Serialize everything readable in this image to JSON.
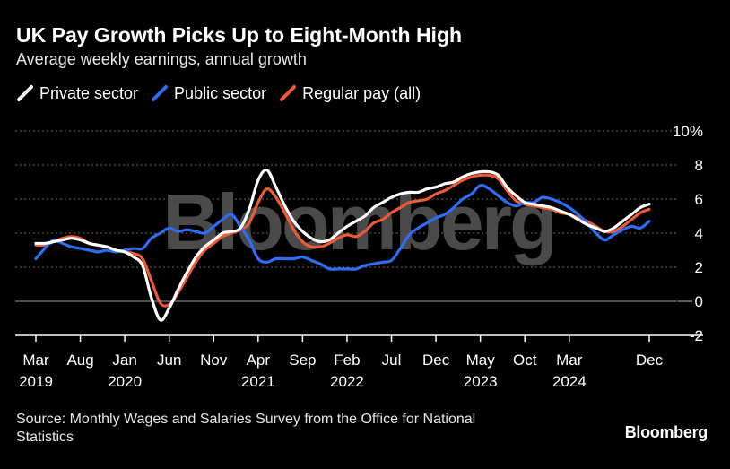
{
  "header": {
    "title": "UK Pay Growth Picks Up to Eight-Month High",
    "subtitle": "Average weekly earnings, annual growth"
  },
  "footer": {
    "source": "Source: Monthly Wages and Salaries Survey from the Office for National Statistics",
    "brand": "Bloomberg"
  },
  "watermark": "Bloomberg",
  "colors": {
    "background": "#000000",
    "private": "#ffffff",
    "public": "#2f6df6",
    "regular": "#ee5a36",
    "grid": "#666666",
    "watermark": "#4a4a4a"
  },
  "chart_data": {
    "type": "line",
    "x_start": "2019-03",
    "x_end": "2024-12",
    "ylim": [
      -2,
      10
    ],
    "yticks": [
      10,
      8,
      6,
      4,
      2,
      0,
      -2
    ],
    "ytick_labels": [
      "10%",
      "8",
      "6",
      "4",
      "2",
      "0",
      "-2"
    ],
    "grid": true,
    "legend_position": "top-left",
    "xticks": [
      {
        "date": "2019-03",
        "month": "Mar",
        "year": "2019"
      },
      {
        "date": "2019-08",
        "month": "Aug",
        "year": ""
      },
      {
        "date": "2020-01",
        "month": "Jan",
        "year": "2020"
      },
      {
        "date": "2020-06",
        "month": "Jun",
        "year": ""
      },
      {
        "date": "2020-11",
        "month": "Nov",
        "year": ""
      },
      {
        "date": "2021-04",
        "month": "Apr",
        "year": "2021"
      },
      {
        "date": "2021-09",
        "month": "Sep",
        "year": ""
      },
      {
        "date": "2022-02",
        "month": "Feb",
        "year": "2022"
      },
      {
        "date": "2022-07",
        "month": "Jul",
        "year": ""
      },
      {
        "date": "2022-12",
        "month": "Dec",
        "year": ""
      },
      {
        "date": "2023-05",
        "month": "May",
        "year": "2023"
      },
      {
        "date": "2023-10",
        "month": "Oct",
        "year": ""
      },
      {
        "date": "2024-03",
        "month": "Mar",
        "year": "2024"
      },
      {
        "date": "2024-12",
        "month": "Dec",
        "year": ""
      }
    ],
    "series": [
      {
        "key": "regular",
        "name": "Regular pay (all)",
        "color": "#ee5a36",
        "points": [
          [
            "2019-03",
            3.3
          ],
          [
            "2019-04",
            3.3
          ],
          [
            "2019-05",
            3.5
          ],
          [
            "2019-06",
            3.7
          ],
          [
            "2019-07",
            3.8
          ],
          [
            "2019-08",
            3.7
          ],
          [
            "2019-09",
            3.4
          ],
          [
            "2019-10",
            3.3
          ],
          [
            "2019-11",
            3.2
          ],
          [
            "2019-12",
            3.0
          ],
          [
            "2020-01",
            2.9
          ],
          [
            "2020-02",
            2.8
          ],
          [
            "2020-03",
            2.5
          ],
          [
            "2020-04",
            1.2
          ],
          [
            "2020-05",
            -0.1
          ],
          [
            "2020-06",
            -0.2
          ],
          [
            "2020-07",
            0.5
          ],
          [
            "2020-08",
            1.4
          ],
          [
            "2020-09",
            2.3
          ],
          [
            "2020-10",
            3.0
          ],
          [
            "2020-11",
            3.4
          ],
          [
            "2020-12",
            3.8
          ],
          [
            "2021-01",
            4.0
          ],
          [
            "2021-02",
            4.2
          ],
          [
            "2021-03",
            4.6
          ],
          [
            "2021-04",
            5.8
          ],
          [
            "2021-05",
            6.6
          ],
          [
            "2021-06",
            6.1
          ],
          [
            "2021-07",
            5.2
          ],
          [
            "2021-08",
            4.2
          ],
          [
            "2021-09",
            3.5
          ],
          [
            "2021-10",
            3.2
          ],
          [
            "2021-11",
            3.2
          ],
          [
            "2021-12",
            3.4
          ],
          [
            "2022-01",
            3.7
          ],
          [
            "2022-02",
            3.9
          ],
          [
            "2022-03",
            3.8
          ],
          [
            "2022-04",
            4.1
          ],
          [
            "2022-05",
            4.6
          ],
          [
            "2022-06",
            4.8
          ],
          [
            "2022-07",
            5.2
          ],
          [
            "2022-08",
            5.5
          ],
          [
            "2022-09",
            5.8
          ],
          [
            "2022-10",
            5.9
          ],
          [
            "2022-11",
            6.0
          ],
          [
            "2022-12",
            6.3
          ],
          [
            "2023-01",
            6.5
          ],
          [
            "2023-02",
            6.8
          ],
          [
            "2023-03",
            7.1
          ],
          [
            "2023-04",
            7.3
          ],
          [
            "2023-05",
            7.4
          ],
          [
            "2023-06",
            7.4
          ],
          [
            "2023-07",
            7.2
          ],
          [
            "2023-08",
            6.5
          ],
          [
            "2023-09",
            5.9
          ],
          [
            "2023-10",
            5.7
          ],
          [
            "2023-11",
            5.6
          ],
          [
            "2023-12",
            5.5
          ],
          [
            "2024-01",
            5.4
          ],
          [
            "2024-02",
            5.2
          ],
          [
            "2024-03",
            5.1
          ],
          [
            "2024-04",
            4.9
          ],
          [
            "2024-05",
            4.7
          ],
          [
            "2024-06",
            4.4
          ],
          [
            "2024-07",
            4.1
          ],
          [
            "2024-08",
            4.1
          ],
          [
            "2024-09",
            4.4
          ],
          [
            "2024-10",
            4.8
          ],
          [
            "2024-11",
            5.2
          ],
          [
            "2024-12",
            5.4
          ]
        ]
      },
      {
        "key": "public",
        "name": "Public sector",
        "color": "#2f6df6",
        "points": [
          [
            "2019-03",
            2.5
          ],
          [
            "2019-04",
            3.1
          ],
          [
            "2019-05",
            3.6
          ],
          [
            "2019-06",
            3.4
          ],
          [
            "2019-07",
            3.2
          ],
          [
            "2019-08",
            3.1
          ],
          [
            "2019-09",
            3.0
          ],
          [
            "2019-10",
            2.9
          ],
          [
            "2019-11",
            3.0
          ],
          [
            "2019-12",
            2.9
          ],
          [
            "2020-01",
            3.0
          ],
          [
            "2020-02",
            3.1
          ],
          [
            "2020-03",
            3.1
          ],
          [
            "2020-04",
            3.7
          ],
          [
            "2020-05",
            4.0
          ],
          [
            "2020-06",
            4.3
          ],
          [
            "2020-07",
            4.1
          ],
          [
            "2020-08",
            4.2
          ],
          [
            "2020-09",
            4.1
          ],
          [
            "2020-10",
            4.0
          ],
          [
            "2020-11",
            4.4
          ],
          [
            "2020-12",
            4.8
          ],
          [
            "2021-01",
            5.1
          ],
          [
            "2021-02",
            4.4
          ],
          [
            "2021-03",
            3.6
          ],
          [
            "2021-04",
            2.5
          ],
          [
            "2021-05",
            2.3
          ],
          [
            "2021-06",
            2.5
          ],
          [
            "2021-07",
            2.5
          ],
          [
            "2021-08",
            2.5
          ],
          [
            "2021-09",
            2.6
          ],
          [
            "2021-10",
            2.4
          ],
          [
            "2021-11",
            2.2
          ],
          [
            "2021-12",
            1.9
          ],
          [
            "2022-01",
            1.9
          ],
          [
            "2022-02",
            1.9
          ],
          [
            "2022-03",
            1.9
          ],
          [
            "2022-04",
            2.1
          ],
          [
            "2022-05",
            2.2
          ],
          [
            "2022-06",
            2.3
          ],
          [
            "2022-07",
            2.4
          ],
          [
            "2022-08",
            3.1
          ],
          [
            "2022-09",
            3.9
          ],
          [
            "2022-10",
            4.3
          ],
          [
            "2022-11",
            4.6
          ],
          [
            "2022-12",
            4.9
          ],
          [
            "2023-01",
            5.1
          ],
          [
            "2023-02",
            5.5
          ],
          [
            "2023-03",
            6.0
          ],
          [
            "2023-04",
            6.3
          ],
          [
            "2023-05",
            6.8
          ],
          [
            "2023-06",
            6.6
          ],
          [
            "2023-07",
            6.2
          ],
          [
            "2023-08",
            5.8
          ],
          [
            "2023-09",
            5.6
          ],
          [
            "2023-10",
            5.8
          ],
          [
            "2023-11",
            5.8
          ],
          [
            "2023-12",
            6.1
          ],
          [
            "2024-01",
            6.0
          ],
          [
            "2024-02",
            5.8
          ],
          [
            "2024-03",
            5.5
          ],
          [
            "2024-04",
            5.1
          ],
          [
            "2024-05",
            4.6
          ],
          [
            "2024-06",
            4.0
          ],
          [
            "2024-07",
            3.6
          ],
          [
            "2024-08",
            3.9
          ],
          [
            "2024-09",
            4.2
          ],
          [
            "2024-10",
            4.4
          ],
          [
            "2024-11",
            4.3
          ],
          [
            "2024-12",
            4.7
          ]
        ]
      },
      {
        "key": "private",
        "name": "Private sector",
        "color": "#ffffff",
        "points": [
          [
            "2019-03",
            3.4
          ],
          [
            "2019-04",
            3.4
          ],
          [
            "2019-05",
            3.5
          ],
          [
            "2019-06",
            3.6
          ],
          [
            "2019-07",
            3.7
          ],
          [
            "2019-08",
            3.6
          ],
          [
            "2019-09",
            3.4
          ],
          [
            "2019-10",
            3.3
          ],
          [
            "2019-11",
            3.2
          ],
          [
            "2019-12",
            3.0
          ],
          [
            "2020-01",
            2.9
          ],
          [
            "2020-02",
            2.6
          ],
          [
            "2020-03",
            2.1
          ],
          [
            "2020-04",
            0.2
          ],
          [
            "2020-05",
            -1.1
          ],
          [
            "2020-06",
            -0.4
          ],
          [
            "2020-07",
            0.7
          ],
          [
            "2020-08",
            1.7
          ],
          [
            "2020-09",
            2.6
          ],
          [
            "2020-10",
            3.2
          ],
          [
            "2020-11",
            3.6
          ],
          [
            "2020-12",
            4.0
          ],
          [
            "2021-01",
            4.1
          ],
          [
            "2021-02",
            4.3
          ],
          [
            "2021-03",
            5.4
          ],
          [
            "2021-04",
            7.1
          ],
          [
            "2021-05",
            7.7
          ],
          [
            "2021-06",
            6.7
          ],
          [
            "2021-07",
            5.6
          ],
          [
            "2021-08",
            4.7
          ],
          [
            "2021-09",
            4.1
          ],
          [
            "2021-10",
            3.7
          ],
          [
            "2021-11",
            3.5
          ],
          [
            "2021-12",
            3.6
          ],
          [
            "2022-01",
            4.0
          ],
          [
            "2022-02",
            4.4
          ],
          [
            "2022-03",
            4.7
          ],
          [
            "2022-04",
            5.0
          ],
          [
            "2022-05",
            5.5
          ],
          [
            "2022-06",
            5.8
          ],
          [
            "2022-07",
            6.1
          ],
          [
            "2022-08",
            6.3
          ],
          [
            "2022-09",
            6.4
          ],
          [
            "2022-10",
            6.4
          ],
          [
            "2022-11",
            6.6
          ],
          [
            "2022-12",
            6.7
          ],
          [
            "2023-01",
            6.9
          ],
          [
            "2023-02",
            7.0
          ],
          [
            "2023-03",
            7.3
          ],
          [
            "2023-04",
            7.5
          ],
          [
            "2023-05",
            7.6
          ],
          [
            "2023-06",
            7.6
          ],
          [
            "2023-07",
            7.4
          ],
          [
            "2023-08",
            6.7
          ],
          [
            "2023-09",
            6.2
          ],
          [
            "2023-10",
            5.8
          ],
          [
            "2023-11",
            5.7
          ],
          [
            "2023-12",
            5.6
          ],
          [
            "2024-01",
            5.5
          ],
          [
            "2024-02",
            5.3
          ],
          [
            "2024-03",
            5.1
          ],
          [
            "2024-04",
            4.8
          ],
          [
            "2024-05",
            4.5
          ],
          [
            "2024-06",
            4.3
          ],
          [
            "2024-07",
            4.1
          ],
          [
            "2024-08",
            4.3
          ],
          [
            "2024-09",
            4.7
          ],
          [
            "2024-10",
            5.1
          ],
          [
            "2024-11",
            5.5
          ],
          [
            "2024-12",
            5.7
          ]
        ]
      }
    ],
    "legend_order": [
      "private",
      "public",
      "regular"
    ]
  }
}
